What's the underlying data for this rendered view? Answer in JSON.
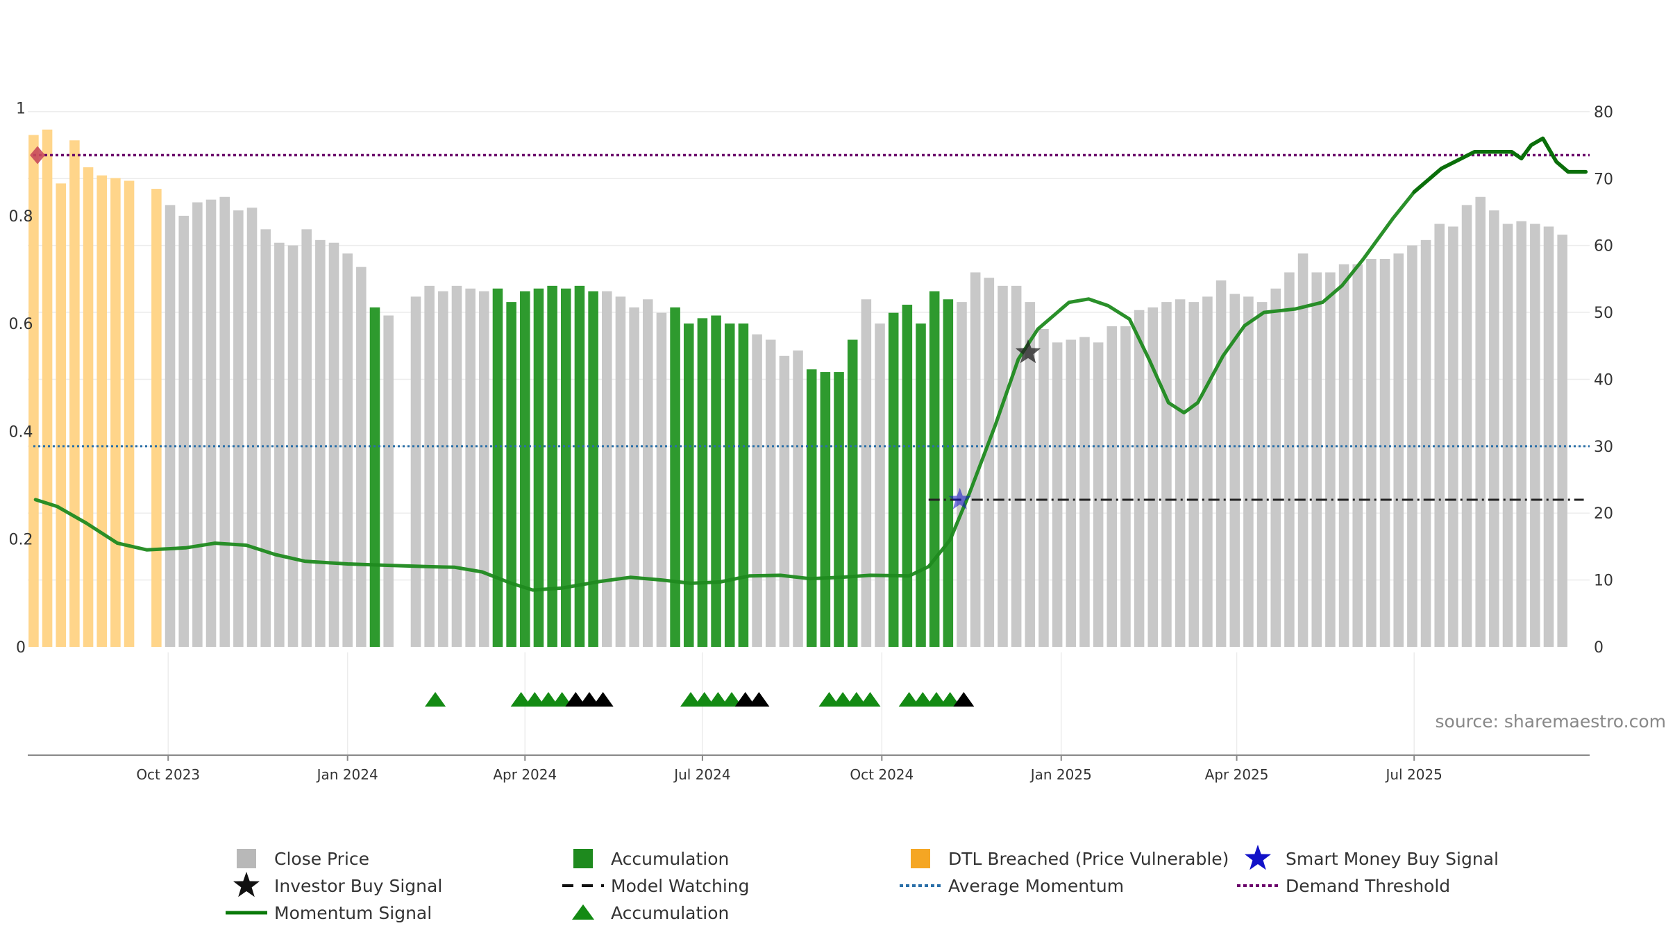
{
  "colors": {
    "close_price": "#c8c8c8",
    "accumulation": "#2e9a2e",
    "dtl_breached": "#ffd58a",
    "momentum": "#1f8a1f",
    "momentum_dark": "#0a6e0a",
    "average_momentum": "#2a6fa8",
    "demand_threshold": "#6b006b",
    "model_watching": "#222222",
    "triangle_green": "#138a13",
    "triangle_black": "#000000",
    "smart_money": "#1212c8",
    "investor_star": "#222222",
    "diamond": "#c84a5a"
  },
  "chart_data": {
    "type": "bar",
    "left_axis": {
      "ylim": [
        0,
        1.1
      ],
      "ticks": [
        0,
        0.2,
        0.4,
        0.6,
        0.8,
        1
      ],
      "tick_labels": [
        "0",
        "0.2",
        "0.4",
        "0.6",
        "0.8",
        "1"
      ]
    },
    "right_axis": {
      "ylim": [
        0,
        88.6
      ],
      "ticks": [
        0,
        10,
        20,
        30,
        40,
        50,
        60,
        70,
        80
      ],
      "tick_labels": [
        "0",
        "10",
        "20",
        "30",
        "40",
        "50",
        "60",
        "70",
        "80"
      ]
    },
    "x_axis": {
      "start": "2023-07-21",
      "end": "2025-09-29",
      "ticks": [
        {
          "date": "2023-10-01",
          "label": "Oct 2023"
        },
        {
          "date": "2024-01-01",
          "label": "Jan 2024"
        },
        {
          "date": "2024-04-01",
          "label": "Apr 2024"
        },
        {
          "date": "2024-07-01",
          "label": "Jul 2024"
        },
        {
          "date": "2024-10-01",
          "label": "Oct 2024"
        },
        {
          "date": "2025-01-01",
          "label": "Jan 2025"
        },
        {
          "date": "2025-04-01",
          "label": "Apr 2025"
        },
        {
          "date": "2025-07-01",
          "label": "Jul 2025"
        }
      ]
    },
    "bar_start_date": "2023-07-24",
    "bar_interval_days": 7,
    "bars": {
      "values": [
        0.95,
        0.96,
        0.86,
        0.94,
        0.89,
        0.875,
        0.87,
        0.865,
        null,
        0.85,
        0.82,
        0.8,
        0.825,
        0.83,
        0.835,
        0.81,
        0.815,
        0.775,
        0.75,
        0.745,
        0.775,
        0.755,
        0.75,
        0.73,
        0.705,
        0.63,
        0.615,
        null,
        0.65,
        0.67,
        0.66,
        0.67,
        0.665,
        0.66,
        0.665,
        0.64,
        0.66,
        0.665,
        0.67,
        0.665,
        0.67,
        0.66,
        0.66,
        0.65,
        0.63,
        0.645,
        0.62,
        0.63,
        0.6,
        0.61,
        0.615,
        0.6,
        0.6,
        0.58,
        0.57,
        0.54,
        0.55,
        0.515,
        0.51,
        0.51,
        0.57,
        0.645,
        0.6,
        0.62,
        0.635,
        0.6,
        0.66,
        0.645,
        0.64,
        0.695,
        0.685,
        0.67,
        0.67,
        0.64,
        0.59,
        0.565,
        0.57,
        0.575,
        0.565,
        0.595,
        0.595,
        0.625,
        0.63,
        0.64,
        0.645,
        0.64,
        0.65,
        0.68,
        0.655,
        0.65,
        0.64,
        0.665,
        0.695,
        0.73,
        0.695,
        0.695,
        0.71,
        0.71,
        0.72,
        0.72,
        0.73,
        0.745,
        0.755,
        0.785,
        0.78,
        0.82,
        0.835,
        0.81,
        0.785,
        0.79,
        0.785,
        0.78,
        0.765
      ],
      "categories": [
        "dtl",
        "dtl",
        "dtl",
        "dtl",
        "dtl",
        "dtl",
        "dtl",
        "dtl",
        "none",
        "dtl",
        "close",
        "close",
        "close",
        "close",
        "close",
        "close",
        "close",
        "close",
        "close",
        "close",
        "close",
        "close",
        "close",
        "close",
        "close",
        "acc",
        "close",
        "none",
        "close",
        "close",
        "close",
        "close",
        "close",
        "close",
        "acc",
        "acc",
        "acc",
        "acc",
        "acc",
        "acc",
        "acc",
        "acc",
        "close",
        "close",
        "close",
        "close",
        "close",
        "acc",
        "acc",
        "acc",
        "acc",
        "acc",
        "acc",
        "close",
        "close",
        "close",
        "close",
        "acc",
        "acc",
        "acc",
        "acc",
        "close",
        "close",
        "acc",
        "acc",
        "acc",
        "acc",
        "acc",
        "close",
        "close",
        "close",
        "close",
        "close",
        "close",
        "close",
        "close",
        "close",
        "close",
        "close",
        "close",
        "close",
        "close",
        "close",
        "close",
        "close",
        "close",
        "close",
        "close",
        "close",
        "close",
        "close",
        "close",
        "close",
        "close",
        "close",
        "close",
        "close",
        "close",
        "close",
        "close",
        "close",
        "close",
        "close",
        "close",
        "close",
        "close",
        "close",
        "close",
        "close",
        "close",
        "close",
        "close",
        "close"
      ]
    },
    "momentum_signal": {
      "points": [
        [
          "2023-07-25",
          22.0
        ],
        [
          "2023-08-05",
          21.0
        ],
        [
          "2023-08-20",
          18.5
        ],
        [
          "2023-09-05",
          15.5
        ],
        [
          "2023-09-20",
          14.5
        ],
        [
          "2023-10-10",
          14.8
        ],
        [
          "2023-10-25",
          15.5
        ],
        [
          "2023-11-10",
          15.2
        ],
        [
          "2023-11-25",
          13.8
        ],
        [
          "2023-12-10",
          12.8
        ],
        [
          "2024-01-01",
          12.4
        ],
        [
          "2024-01-20",
          12.2
        ],
        [
          "2024-02-10",
          12.0
        ],
        [
          "2024-02-25",
          11.9
        ],
        [
          "2024-03-10",
          11.2
        ],
        [
          "2024-03-25",
          9.5
        ],
        [
          "2024-04-05",
          8.5
        ],
        [
          "2024-04-20",
          8.8
        ],
        [
          "2024-05-10",
          9.8
        ],
        [
          "2024-05-25",
          10.4
        ],
        [
          "2024-06-10",
          10.0
        ],
        [
          "2024-06-25",
          9.5
        ],
        [
          "2024-07-10",
          9.7
        ],
        [
          "2024-07-25",
          10.6
        ],
        [
          "2024-08-10",
          10.7
        ],
        [
          "2024-08-25",
          10.2
        ],
        [
          "2024-09-10",
          10.4
        ],
        [
          "2024-09-25",
          10.7
        ],
        [
          "2024-10-15",
          10.6
        ],
        [
          "2024-10-25",
          12.0
        ],
        [
          "2024-11-05",
          16.0
        ],
        [
          "2024-11-15",
          23.0
        ],
        [
          "2024-11-28",
          33.0
        ],
        [
          "2024-12-10",
          43.0
        ],
        [
          "2024-12-20",
          47.5
        ],
        [
          "2025-01-05",
          51.5
        ],
        [
          "2025-01-15",
          52.0
        ],
        [
          "2025-01-25",
          51.0
        ],
        [
          "2025-02-05",
          49.0
        ],
        [
          "2025-02-15",
          43.0
        ],
        [
          "2025-02-25",
          36.5
        ],
        [
          "2025-03-05",
          35.0
        ],
        [
          "2025-03-12",
          36.5
        ],
        [
          "2025-03-25",
          43.5
        ],
        [
          "2025-04-05",
          48.0
        ],
        [
          "2025-04-15",
          50.0
        ],
        [
          "2025-05-01",
          50.5
        ],
        [
          "2025-05-15",
          51.5
        ],
        [
          "2025-05-25",
          54.0
        ],
        [
          "2025-06-05",
          58.0
        ],
        [
          "2025-06-20",
          64.0
        ],
        [
          "2025-07-01",
          68.0
        ],
        [
          "2025-07-15",
          71.5
        ],
        [
          "2025-08-01",
          74.0
        ],
        [
          "2025-08-10",
          74.0
        ],
        [
          "2025-08-20",
          74.0
        ],
        [
          "2025-08-25",
          73.0
        ],
        [
          "2025-08-30",
          75.0
        ],
        [
          "2025-09-05",
          76.0
        ],
        [
          "2025-09-12",
          72.5
        ],
        [
          "2025-09-18",
          71.0
        ],
        [
          "2025-09-27",
          71.0
        ]
      ]
    },
    "average_momentum": 30,
    "demand_threshold": 73.5,
    "model_watching": {
      "start": "2024-10-25",
      "end": "2025-09-26",
      "value": 22.0
    },
    "smart_money_buy_signal": {
      "date": "2024-11-10",
      "value": 22.0
    },
    "investor_buy_signal": {
      "date": "2024-12-15",
      "value": 44.0
    },
    "demand_marker": {
      "date": "2023-07-26",
      "value": 73.5
    },
    "accumulation_triangles": [
      {
        "date": "2024-02-15",
        "color": "green"
      },
      {
        "date": "2024-03-30",
        "color": "green"
      },
      {
        "date": "2024-04-06",
        "color": "green"
      },
      {
        "date": "2024-04-13",
        "color": "green"
      },
      {
        "date": "2024-04-20",
        "color": "green"
      },
      {
        "date": "2024-04-27",
        "color": "black"
      },
      {
        "date": "2024-05-04",
        "color": "black"
      },
      {
        "date": "2024-05-11",
        "color": "black"
      },
      {
        "date": "2024-06-25",
        "color": "green"
      },
      {
        "date": "2024-07-02",
        "color": "green"
      },
      {
        "date": "2024-07-09",
        "color": "green"
      },
      {
        "date": "2024-07-16",
        "color": "green"
      },
      {
        "date": "2024-07-23",
        "color": "black"
      },
      {
        "date": "2024-07-30",
        "color": "black"
      },
      {
        "date": "2024-09-04",
        "color": "green"
      },
      {
        "date": "2024-09-11",
        "color": "green"
      },
      {
        "date": "2024-09-18",
        "color": "green"
      },
      {
        "date": "2024-09-25",
        "color": "green"
      },
      {
        "date": "2024-10-15",
        "color": "green"
      },
      {
        "date": "2024-10-22",
        "color": "green"
      },
      {
        "date": "2024-10-29",
        "color": "green"
      },
      {
        "date": "2024-11-05",
        "color": "green"
      },
      {
        "date": "2024-11-12",
        "color": "black"
      }
    ],
    "legend": [
      {
        "label": "Close Price",
        "type": "square",
        "color": "#b8b8b8"
      },
      {
        "label": "Accumulation",
        "type": "square",
        "color": "#1e8a1e"
      },
      {
        "label": "DTL Breached (Price Vulnerable)",
        "type": "square",
        "color": "#f5a623"
      },
      {
        "label": "Smart Money Buy Signal",
        "type": "star",
        "color": "#1212c8"
      },
      {
        "label": "Investor Buy Signal",
        "type": "star",
        "color": "#111111"
      },
      {
        "label": "Model Watching",
        "type": "dash",
        "color": "#111111"
      },
      {
        "label": "Average Momentum",
        "type": "dot",
        "color": "#2a6fa8"
      },
      {
        "label": "Demand Threshold",
        "type": "dot",
        "color": "#6b006b"
      },
      {
        "label": "Momentum Signal",
        "type": "line",
        "color": "#0a7a0a"
      },
      {
        "label": "Accumulation",
        "type": "triangle",
        "color": "#138a13"
      }
    ],
    "source_text": "source: sharemaestro.com"
  }
}
